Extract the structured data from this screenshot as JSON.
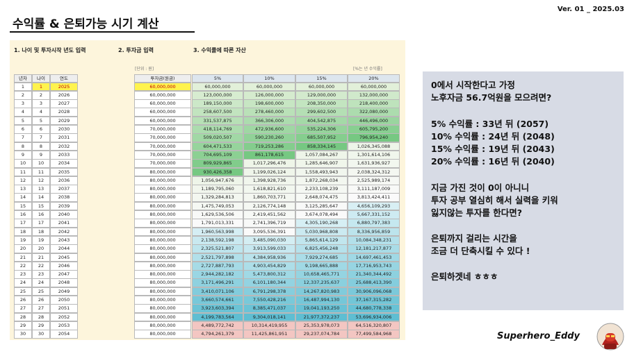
{
  "header": {
    "title": "수익률 & 은퇴가능 시기 계산",
    "version": "Ver. 01 _ 2025.03"
  },
  "sections": [
    "1. 나이 및 투자시작 년도 입력",
    "2. 투자금 입력",
    "3. 수익률에 따른 자산"
  ],
  "notes": {
    "unit": "[단위 : 원]",
    "rate": "[%는 년 수익률]"
  },
  "table": {
    "headers": [
      "년차",
      "나이",
      "연도",
      "투자금(원금)",
      "5%",
      "10%",
      "15%",
      "20%"
    ],
    "rows": [
      [
        "1",
        "1",
        "2025",
        "60,000,000",
        "60,000,000",
        "60,000,000",
        "60,000,000",
        "60,000,000"
      ],
      [
        "2",
        "2",
        "2026",
        "60,000,000",
        "123,000,000",
        "126,000,000",
        "129,000,000",
        "132,000,000"
      ],
      [
        "3",
        "3",
        "2027",
        "60,000,000",
        "189,150,000",
        "198,600,000",
        "208,350,000",
        "218,400,000"
      ],
      [
        "4",
        "4",
        "2028",
        "60,000,000",
        "258,607,500",
        "278,460,000",
        "299,602,500",
        "322,080,000"
      ],
      [
        "5",
        "5",
        "2029",
        "60,000,000",
        "331,537,875",
        "366,306,000",
        "404,542,875",
        "446,496,000"
      ],
      [
        "6",
        "6",
        "2030",
        "70,000,000",
        "418,114,769",
        "472,936,600",
        "535,224,306",
        "605,795,200"
      ],
      [
        "7",
        "7",
        "2031",
        "70,000,000",
        "509,020,507",
        "590,230,260",
        "685,507,952",
        "796,954,240"
      ],
      [
        "8",
        "8",
        "2032",
        "70,000,000",
        "604,471,533",
        "719,253,286",
        "858,334,145",
        "1,026,345,088"
      ],
      [
        "9",
        "9",
        "2033",
        "70,000,000",
        "704,695,109",
        "861,178,615",
        "1,057,084,267",
        "1,301,614,106"
      ],
      [
        "10",
        "10",
        "2034",
        "70,000,000",
        "809,929,865",
        "1,017,296,476",
        "1,285,646,907",
        "1,631,936,927"
      ],
      [
        "11",
        "11",
        "2035",
        "80,000,000",
        "930,426,358",
        "1,199,026,124",
        "1,558,493,943",
        "2,038,324,312"
      ],
      [
        "12",
        "12",
        "2036",
        "80,000,000",
        "1,056,947,676",
        "1,398,928,736",
        "1,872,268,034",
        "2,525,989,174"
      ],
      [
        "13",
        "13",
        "2037",
        "80,000,000",
        "1,189,795,060",
        "1,618,821,610",
        "2,233,108,239",
        "3,111,187,009"
      ],
      [
        "14",
        "14",
        "2038",
        "80,000,000",
        "1,329,284,813",
        "1,860,703,771",
        "2,648,074,475",
        "3,813,424,411"
      ],
      [
        "15",
        "15",
        "2039",
        "80,000,000",
        "1,475,749,053",
        "2,126,774,148",
        "3,125,285,647",
        "4,656,109,293"
      ],
      [
        "16",
        "16",
        "2040",
        "80,000,000",
        "1,629,536,506",
        "2,419,451,562",
        "3,674,078,494",
        "5,667,331,152"
      ],
      [
        "17",
        "17",
        "2041",
        "80,000,000",
        "1,791,013,331",
        "2,741,396,719",
        "4,305,190,268",
        "6,880,797,383"
      ],
      [
        "18",
        "18",
        "2042",
        "80,000,000",
        "1,960,563,998",
        "3,095,536,391",
        "5,030,968,808",
        "8,336,956,859"
      ],
      [
        "19",
        "19",
        "2043",
        "80,000,000",
        "2,138,592,198",
        "3,485,090,030",
        "5,865,614,129",
        "10,084,348,231"
      ],
      [
        "20",
        "20",
        "2044",
        "80,000,000",
        "2,325,521,807",
        "3,913,599,033",
        "6,825,456,248",
        "12,181,217,877"
      ],
      [
        "21",
        "21",
        "2045",
        "80,000,000",
        "2,521,797,898",
        "4,384,958,936",
        "7,929,274,685",
        "14,697,461,453"
      ],
      [
        "22",
        "22",
        "2046",
        "80,000,000",
        "2,727,887,793",
        "4,903,454,829",
        "9,198,665,888",
        "17,716,953,743"
      ],
      [
        "23",
        "23",
        "2047",
        "80,000,000",
        "2,944,282,182",
        "5,473,800,312",
        "10,658,465,771",
        "21,340,344,492"
      ],
      [
        "24",
        "24",
        "2048",
        "80,000,000",
        "3,171,496,291",
        "6,101,180,344",
        "12,337,235,637",
        "25,688,413,390"
      ],
      [
        "25",
        "25",
        "2049",
        "80,000,000",
        "3,410,071,106",
        "6,791,298,378",
        "14,267,820,983",
        "30,906,096,068"
      ],
      [
        "26",
        "26",
        "2050",
        "80,000,000",
        "3,660,574,661",
        "7,550,428,216",
        "16,487,994,130",
        "37,167,315,282"
      ],
      [
        "27",
        "27",
        "2051",
        "80,000,000",
        "3,923,603,394",
        "8,385,471,037",
        "19,041,193,250",
        "44,680,778,338"
      ],
      [
        "28",
        "28",
        "2052",
        "80,000,000",
        "4,199,783,564",
        "9,304,018,141",
        "21,977,372,237",
        "53,696,934,006"
      ],
      [
        "29",
        "29",
        "2053",
        "80,000,000",
        "4,489,772,742",
        "10,314,419,955",
        "25,353,978,073",
        "64,516,320,807"
      ],
      [
        "30",
        "30",
        "2054",
        "80,000,000",
        "4,794,261,379",
        "11,425,861,951",
        "29,237,074,784",
        "77,499,584,968"
      ]
    ]
  },
  "panel": {
    "lines": [
      "0에서 시작한다고 가정",
      "노후자금 56.7억원을 모으려면?",
      "5%   수익률  : 33년 뒤 (2057)",
      "10% 수익률  : 24년 뒤 (2048)",
      "15% 수익률  : 19년 뒤 (2043)",
      "20% 수익률 :  16년 뒤 (2040)",
      "지금 가진 것이 0이 아니니",
      "투자 공부 열심히 해서 실력을 키워",
      "잃지않는 투자를 한다면?",
      "은퇴까지 걸리는 시간을",
      "조금 더 단축시킬 수 있다 !",
      "은퇴하겟네 ㅎㅎㅎ"
    ]
  },
  "author": "Superhero_Eddy"
}
